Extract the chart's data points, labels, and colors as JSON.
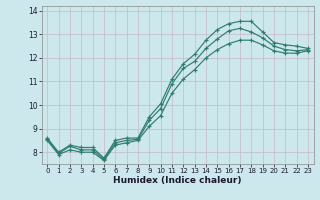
{
  "xlabel": "Humidex (Indice chaleur)",
  "xlim": [
    -0.5,
    23.5
  ],
  "ylim": [
    7.5,
    14.2
  ],
  "xticks": [
    0,
    1,
    2,
    3,
    4,
    5,
    6,
    7,
    8,
    9,
    10,
    11,
    12,
    13,
    14,
    15,
    16,
    17,
    18,
    19,
    20,
    21,
    22,
    23
  ],
  "yticks": [
    8,
    9,
    10,
    11,
    12,
    13,
    14
  ],
  "bg_color": "#cce8ed",
  "line_color": "#2e7d6e",
  "grid_color": "#b0d4da",
  "lines": [
    {
      "x": [
        0,
        1,
        2,
        3,
        4,
        5,
        6,
        7,
        8,
        9,
        10,
        11,
        12,
        13,
        14,
        15,
        16,
        17,
        18,
        19,
        20,
        21,
        22,
        23
      ],
      "y": [
        8.6,
        8.0,
        8.3,
        8.2,
        8.2,
        7.75,
        8.5,
        8.6,
        8.6,
        9.5,
        10.05,
        11.1,
        11.75,
        12.15,
        12.75,
        13.2,
        13.45,
        13.55,
        13.55,
        13.1,
        12.65,
        12.55,
        12.5,
        12.4
      ]
    },
    {
      "x": [
        0,
        1,
        2,
        3,
        4,
        5,
        6,
        7,
        8,
        9,
        10,
        11,
        12,
        13,
        14,
        15,
        16,
        17,
        18,
        19,
        20,
        21,
        22,
        23
      ],
      "y": [
        8.55,
        7.95,
        8.25,
        8.1,
        8.1,
        7.7,
        8.4,
        8.5,
        8.55,
        9.35,
        9.85,
        10.9,
        11.55,
        11.85,
        12.4,
        12.8,
        13.15,
        13.25,
        13.1,
        12.85,
        12.5,
        12.35,
        12.3,
        12.35
      ]
    },
    {
      "x": [
        0,
        1,
        2,
        3,
        4,
        5,
        6,
        7,
        8,
        9,
        10,
        11,
        12,
        13,
        14,
        15,
        16,
        17,
        18,
        19,
        20,
        21,
        22,
        23
      ],
      "y": [
        8.5,
        7.9,
        8.1,
        8.0,
        8.0,
        7.65,
        8.3,
        8.4,
        8.5,
        9.1,
        9.55,
        10.5,
        11.1,
        11.5,
        12.0,
        12.35,
        12.6,
        12.75,
        12.75,
        12.55,
        12.3,
        12.2,
        12.2,
        12.3
      ]
    }
  ]
}
